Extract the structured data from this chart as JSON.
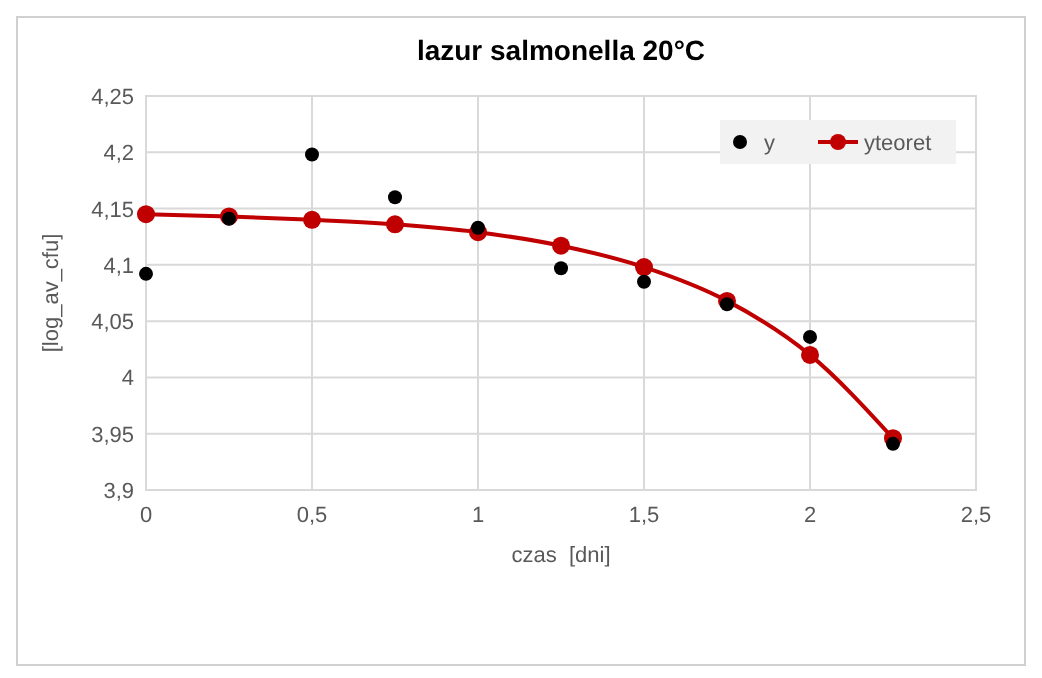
{
  "chart_data": {
    "type": "scatter",
    "title": "lazur salmonella 20°C",
    "xlabel": "czas  [dni]",
    "ylabel": "[log_av_cfu]",
    "xlim": [
      0,
      2.5
    ],
    "xticks": [
      0,
      {
        "value": 0.5,
        "label": "0,5"
      },
      1,
      {
        "value": 1.5,
        "label": "1,5"
      },
      2,
      {
        "value": 2.5,
        "label": "2,5"
      }
    ],
    "ylim": [
      3.9,
      4.25
    ],
    "yticks": [
      {
        "value": 3.9,
        "label": "3,9"
      },
      {
        "value": 3.95,
        "label": "3,95"
      },
      4,
      {
        "value": 4.05,
        "label": "4,05"
      },
      {
        "value": 4.1,
        "label": "4,1"
      },
      {
        "value": 4.15,
        "label": "4,15"
      },
      {
        "value": 4.2,
        "label": "4,2"
      },
      {
        "value": 4.25,
        "label": "4,25"
      }
    ],
    "x": [
      0,
      0.25,
      0.5,
      0.75,
      1,
      1.25,
      1.5,
      1.75,
      2,
      2.25
    ],
    "series": [
      {
        "name": "y",
        "color": "#000000",
        "values": [
          4.092,
          4.141,
          4.198,
          4.16,
          4.133,
          4.097,
          4.085,
          4.065,
          4.036,
          3.941
        ]
      },
      {
        "name": "yteoret",
        "type": "line",
        "color": "#c00000",
        "values": [
          4.145,
          4.143,
          4.14,
          4.136,
          4.129,
          4.117,
          4.098,
          4.068,
          4.02,
          3.946
        ]
      }
    ],
    "grid": true,
    "legend": "top right",
    "marker": "circle"
  }
}
